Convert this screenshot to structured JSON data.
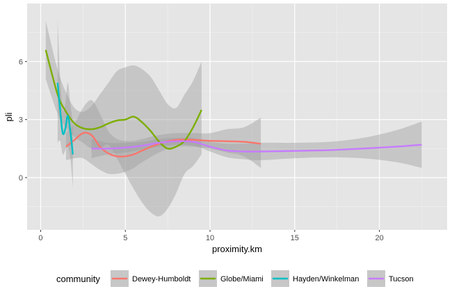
{
  "chart_data": {
    "type": "line",
    "xlabel": "proximity.km",
    "ylabel": "pli",
    "xlim": [
      -0.8,
      24.0
    ],
    "ylim": [
      -2.7,
      9.0
    ],
    "x_ticks": [
      0,
      5,
      10,
      15,
      20
    ],
    "y_ticks": [
      0,
      3,
      6
    ],
    "x_tick_labels": [
      "0",
      "5",
      "10",
      "15",
      "20"
    ],
    "y_tick_labels": [
      "0",
      "3",
      "6"
    ],
    "grid": true,
    "legend_title": "community",
    "legend_position": "bottom",
    "background_color": "#e5e5e5",
    "series": [
      {
        "name": "Dewey-Humboldt",
        "color": "#f8766d",
        "x": [
          1.5,
          2.0,
          2.5,
          3.0,
          3.5,
          4.0,
          4.5,
          5.0,
          5.5,
          6.0,
          7.0,
          8.0,
          9.0,
          10.0,
          11.0,
          12.0,
          13.0
        ],
        "y": [
          1.6,
          1.95,
          2.3,
          2.2,
          1.6,
          1.25,
          1.1,
          1.1,
          1.2,
          1.4,
          1.75,
          1.95,
          1.95,
          1.9,
          1.88,
          1.85,
          1.75
        ],
        "ci_low": [
          0.9,
          1.0,
          1.0,
          0.7,
          0.4,
          0.2,
          0.2,
          0.3,
          0.5,
          0.8,
          1.3,
          1.6,
          1.6,
          1.5,
          1.3,
          1.1,
          0.5
        ],
        "ci_high": [
          2.3,
          2.8,
          3.6,
          4.0,
          3.3,
          2.4,
          2.0,
          1.9,
          1.9,
          2.0,
          2.2,
          2.3,
          2.3,
          2.3,
          2.5,
          2.6,
          3.1
        ]
      },
      {
        "name": "Globe/Miami",
        "color": "#7cae00",
        "x": [
          0.3,
          1.0,
          1.5,
          2.0,
          2.5,
          3.0,
          3.5,
          4.0,
          4.5,
          5.0,
          5.5,
          6.0,
          6.5,
          7.0,
          7.5,
          8.0,
          8.5,
          9.0,
          9.5
        ],
        "y": [
          6.6,
          4.3,
          3.4,
          2.8,
          2.55,
          2.5,
          2.6,
          2.8,
          2.95,
          3.0,
          3.15,
          2.85,
          2.4,
          1.85,
          1.5,
          1.6,
          1.9,
          2.6,
          3.5
        ],
        "ci_low": [
          5.1,
          3.3,
          2.6,
          2.1,
          1.8,
          1.5,
          1.5,
          1.7,
          1.0,
          0.2,
          -0.6,
          -1.3,
          -1.8,
          -2.0,
          -1.6,
          -0.8,
          0.2,
          0.6,
          1.2
        ],
        "ci_high": [
          8.1,
          5.6,
          4.4,
          3.6,
          3.4,
          3.7,
          4.3,
          4.9,
          5.5,
          5.7,
          5.8,
          5.6,
          5.2,
          4.5,
          3.8,
          3.6,
          4.3,
          5.0,
          6.0
        ]
      },
      {
        "name": "Hayden/Winkelman",
        "color": "#00bfc4",
        "x": [
          1.0,
          1.15,
          1.3,
          1.45,
          1.6,
          1.75,
          1.9
        ],
        "y": [
          4.9,
          3.5,
          2.3,
          2.5,
          3.2,
          2.4,
          1.2
        ],
        "ci_low": [
          1.8,
          1.9,
          1.2,
          1.4,
          1.6,
          1.0,
          -0.5
        ],
        "ci_high": [
          8.2,
          5.2,
          3.5,
          3.8,
          4.9,
          3.8,
          2.9
        ]
      },
      {
        "name": "Tucson",
        "color": "#c77cff",
        "x": [
          3.0,
          4.0,
          5.0,
          6.0,
          7.0,
          8.0,
          9.0,
          10.0,
          11.0,
          12.0,
          13.0,
          15.0,
          17.0,
          19.0,
          21.0,
          22.5
        ],
        "y": [
          1.5,
          1.5,
          1.55,
          1.65,
          1.8,
          1.88,
          1.85,
          1.6,
          1.4,
          1.35,
          1.35,
          1.38,
          1.42,
          1.5,
          1.6,
          1.7
        ],
        "ci_low": [
          1.0,
          1.2,
          1.3,
          1.45,
          1.6,
          1.7,
          1.65,
          1.35,
          1.05,
          0.95,
          0.9,
          1.0,
          1.05,
          1.0,
          0.8,
          0.5
        ],
        "ci_high": [
          2.0,
          1.8,
          1.8,
          1.85,
          2.0,
          2.05,
          2.05,
          1.85,
          1.75,
          1.75,
          1.8,
          1.8,
          1.85,
          2.05,
          2.45,
          2.9
        ]
      }
    ]
  }
}
